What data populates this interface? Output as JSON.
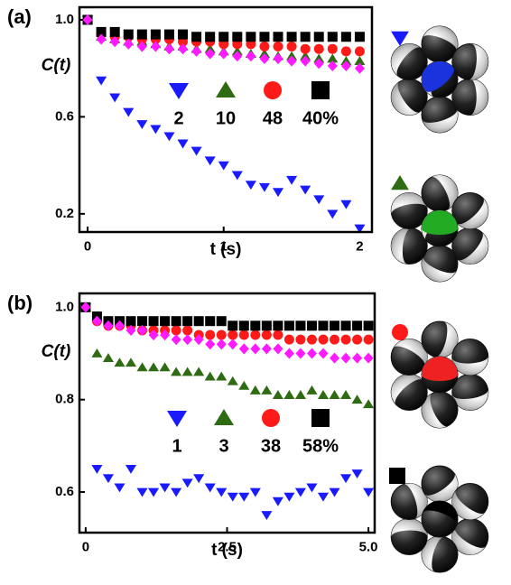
{
  "chart_data": [
    {
      "type": "scatter",
      "panel_label": "(a)",
      "x_label": "t (s)",
      "y_label": "C(t)",
      "x": [
        0,
        0.1,
        0.2,
        0.3,
        0.4,
        0.5,
        0.6,
        0.7,
        0.8,
        0.9,
        1.0,
        1.1,
        1.2,
        1.3,
        1.4,
        1.5,
        1.6,
        1.7,
        1.8,
        1.9,
        2.0
      ],
      "xlim": [
        -0.06,
        2.09
      ],
      "xticks": [
        0,
        1,
        2
      ],
      "ylim": [
        0.125,
        1.052
      ],
      "yticks": [
        0.2,
        0.6,
        {
          "value": 1,
          "label": "1.0"
        }
      ],
      "series": [
        {
          "name": "2",
          "color": "#1a1aff",
          "marker": "triangle-down",
          "values": [
            1.0,
            0.75,
            0.68,
            0.62,
            0.57,
            0.55,
            0.52,
            0.49,
            0.46,
            0.42,
            0.4,
            0.36,
            0.32,
            0.31,
            0.29,
            0.34,
            0.3,
            0.26,
            0.2,
            0.24,
            0.14
          ]
        },
        {
          "name": "10",
          "color": "#2e6b12",
          "marker": "triangle-up",
          "values": [
            1.0,
            0.93,
            0.92,
            0.91,
            0.91,
            0.9,
            0.89,
            0.89,
            0.88,
            0.88,
            0.87,
            0.87,
            0.86,
            0.86,
            0.85,
            0.85,
            0.85,
            0.84,
            0.84,
            0.83,
            0.83
          ]
        },
        {
          "name": "48",
          "color": "#ff1a1a",
          "marker": "circle",
          "values": [
            1.0,
            0.94,
            0.93,
            0.93,
            0.92,
            0.92,
            0.92,
            0.91,
            0.91,
            0.91,
            0.9,
            0.9,
            0.9,
            0.89,
            0.89,
            0.89,
            0.88,
            0.88,
            0.88,
            0.87,
            0.87
          ]
        },
        {
          "name": "40%",
          "color": "#000000",
          "marker": "square",
          "values": [
            1.0,
            0.95,
            0.95,
            0.94,
            0.94,
            0.94,
            0.94,
            0.94,
            0.93,
            0.93,
            0.93,
            0.93,
            0.93,
            0.93,
            0.93,
            0.93,
            0.93,
            0.93,
            0.93,
            0.93,
            0.93
          ]
        },
        {
          "color": "#ff1aff",
          "marker": "diamond",
          "values": [
            1.0,
            0.92,
            0.91,
            0.9,
            0.89,
            0.89,
            0.88,
            0.88,
            0.87,
            0.86,
            0.86,
            0.85,
            0.85,
            0.84,
            0.84,
            0.83,
            0.83,
            0.82,
            0.81,
            0.81,
            0.8
          ]
        }
      ]
    },
    {
      "type": "scatter",
      "panel_label": "(b)",
      "x_label": "t (s)",
      "y_label": "C(t)",
      "x": [
        0,
        0.2,
        0.4,
        0.6,
        0.8,
        1.0,
        1.2,
        1.4,
        1.6,
        1.8,
        2.0,
        2.2,
        2.4,
        2.6,
        2.8,
        3.0,
        3.2,
        3.4,
        3.6,
        3.8,
        4.0,
        4.2,
        4.4,
        4.6,
        4.8,
        5.0
      ],
      "xlim": [
        -0.11,
        5.11
      ],
      "xticks": [
        0,
        2.5,
        {
          "value": 5,
          "label": "5.0"
        }
      ],
      "ylim": [
        0.512,
        1.03
      ],
      "yticks": [
        0.6,
        0.8,
        {
          "value": 1,
          "label": "1.0"
        }
      ],
      "series": [
        {
          "name": "1",
          "color": "#1a1aff",
          "marker": "triangle-down",
          "values": [
            1.0,
            0.65,
            0.63,
            0.61,
            0.65,
            0.6,
            0.6,
            0.61,
            0.6,
            0.62,
            0.63,
            0.61,
            0.6,
            0.59,
            0.59,
            0.6,
            0.55,
            0.58,
            0.59,
            0.6,
            0.61,
            0.59,
            0.6,
            0.63,
            0.64,
            0.6
          ]
        },
        {
          "name": "3",
          "color": "#2e6b12",
          "marker": "triangle-up",
          "values": [
            1.0,
            0.9,
            0.89,
            0.88,
            0.88,
            0.87,
            0.87,
            0.87,
            0.86,
            0.86,
            0.86,
            0.85,
            0.85,
            0.84,
            0.83,
            0.82,
            0.82,
            0.81,
            0.81,
            0.81,
            0.82,
            0.81,
            0.81,
            0.81,
            0.8,
            0.79
          ]
        },
        {
          "name": "38",
          "color": "#ff1a1a",
          "marker": "circle",
          "values": [
            1.0,
            0.97,
            0.96,
            0.96,
            0.96,
            0.95,
            0.95,
            0.95,
            0.95,
            0.95,
            0.94,
            0.94,
            0.94,
            0.94,
            0.94,
            0.94,
            0.94,
            0.94,
            0.93,
            0.93,
            0.93,
            0.93,
            0.93,
            0.93,
            0.93,
            0.93
          ]
        },
        {
          "name": "58%",
          "color": "#000000",
          "marker": "square",
          "values": [
            1.0,
            0.98,
            0.97,
            0.97,
            0.97,
            0.97,
            0.97,
            0.97,
            0.97,
            0.97,
            0.97,
            0.97,
            0.97,
            0.96,
            0.96,
            0.96,
            0.96,
            0.96,
            0.96,
            0.96,
            0.96,
            0.96,
            0.96,
            0.96,
            0.96,
            0.96
          ]
        },
        {
          "color": "#ff1aff",
          "marker": "diamond",
          "values": [
            1.0,
            0.97,
            0.96,
            0.96,
            0.95,
            0.95,
            0.94,
            0.94,
            0.93,
            0.93,
            0.93,
            0.92,
            0.92,
            0.92,
            0.91,
            0.91,
            0.91,
            0.91,
            0.9,
            0.9,
            0.9,
            0.9,
            0.89,
            0.89,
            0.89,
            0.89
          ]
        }
      ]
    }
  ]
}
